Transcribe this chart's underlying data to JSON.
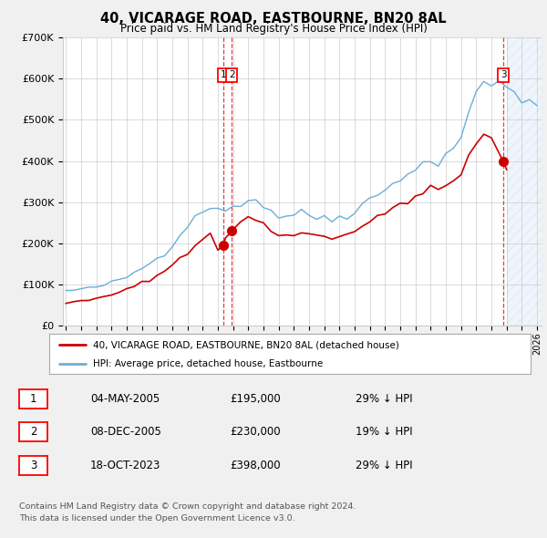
{
  "title": "40, VICARAGE ROAD, EASTBOURNE, BN20 8AL",
  "subtitle": "Price paid vs. HM Land Registry's House Price Index (HPI)",
  "ylim": [
    0,
    700000
  ],
  "yticks": [
    0,
    100000,
    200000,
    300000,
    400000,
    500000,
    600000,
    700000
  ],
  "ytick_labels": [
    "£0",
    "£100K",
    "£200K",
    "£300K",
    "£400K",
    "£500K",
    "£600K",
    "£700K"
  ],
  "xlim_start": 1994.8,
  "xlim_end": 2026.3,
  "bg_color": "#f0f0f0",
  "plot_bg_color": "#ffffff",
  "hpi_color": "#6baed6",
  "price_color": "#cc0000",
  "sale1_date": 2005.34,
  "sale1_price": 195000,
  "sale2_date": 2005.92,
  "sale2_price": 230000,
  "sale3_date": 2023.79,
  "sale3_price": 398000,
  "legend_label1": "40, VICARAGE ROAD, EASTBOURNE, BN20 8AL (detached house)",
  "legend_label2": "HPI: Average price, detached house, Eastbourne",
  "table_rows": [
    [
      "1",
      "04-MAY-2005",
      "£195,000",
      "29% ↓ HPI"
    ],
    [
      "2",
      "08-DEC-2005",
      "£230,000",
      "19% ↓ HPI"
    ],
    [
      "3",
      "18-OCT-2023",
      "£398,000",
      "29% ↓ HPI"
    ]
  ],
  "footnote1": "Contains HM Land Registry data © Crown copyright and database right 2024.",
  "footnote2": "This data is licensed under the Open Government Licence v3.0.",
  "future_shade_start": 2024.0,
  "future_shade_end": 2026.3
}
